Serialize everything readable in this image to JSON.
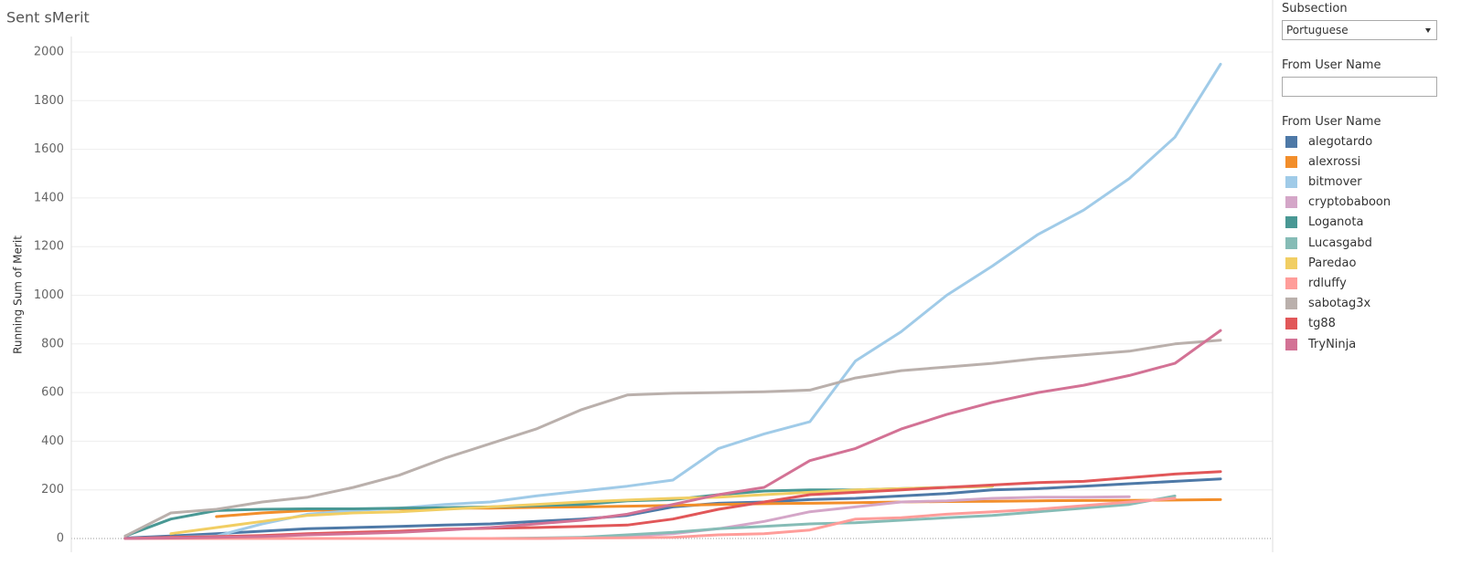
{
  "chart_data": {
    "type": "line",
    "title": "Sent sMerit",
    "y_label": "Running Sum of Merit",
    "categories": [
      null,
      null,
      null,
      null,
      null,
      null,
      null,
      null,
      null,
      null,
      null,
      null,
      null,
      null,
      null,
      null,
      null,
      null,
      null,
      null,
      null,
      null,
      null,
      null,
      null
    ],
    "ylim": [
      0,
      2000
    ],
    "yticks": [
      0,
      200,
      400,
      600,
      800,
      1000,
      1200,
      1400,
      1600,
      1800,
      2000
    ],
    "grid": true,
    "legend_title": "From User Name",
    "series": [
      {
        "name": "alegotardo",
        "color": "#4e79a7",
        "values": [
          2,
          10,
          20,
          30,
          40,
          45,
          50,
          55,
          60,
          70,
          80,
          95,
          130,
          145,
          150,
          160,
          165,
          175,
          185,
          200,
          205,
          215,
          225,
          235,
          245
        ]
      },
      {
        "name": "alexrossi",
        "color": "#f28e2b",
        "values": [
          null,
          null,
          90,
          105,
          115,
          120,
          122,
          125,
          125,
          128,
          130,
          133,
          136,
          140,
          143,
          145,
          147,
          150,
          152,
          153,
          155,
          156,
          157,
          158,
          160
        ]
      },
      {
        "name": "bitmover",
        "color": "#a0cbe8",
        "values": [
          0,
          5,
          10,
          60,
          100,
          115,
          125,
          140,
          150,
          175,
          195,
          215,
          240,
          370,
          430,
          480,
          730,
          850,
          1000,
          1120,
          1250,
          1350,
          1480,
          1650,
          1950
        ]
      },
      {
        "name": "cryptobaboon",
        "color": "#d4a6c8",
        "values": [
          0,
          0,
          0,
          0,
          0,
          0,
          0,
          0,
          0,
          0,
          2,
          10,
          20,
          40,
          70,
          110,
          130,
          150,
          155,
          165,
          170,
          170,
          172,
          null,
          null
        ]
      },
      {
        "name": "Loganota",
        "color": "#499894",
        "values": [
          10,
          80,
          115,
          120,
          122,
          122,
          125,
          127,
          130,
          135,
          140,
          155,
          160,
          180,
          195,
          200,
          200,
          205,
          210,
          215,
          null,
          null,
          null,
          null,
          null
        ]
      },
      {
        "name": "Lucasgabd",
        "color": "#86bcb6",
        "values": [
          0,
          0,
          0,
          0,
          0,
          0,
          0,
          0,
          0,
          2,
          5,
          15,
          25,
          40,
          50,
          60,
          65,
          75,
          85,
          95,
          110,
          125,
          140,
          175,
          null
        ]
      },
      {
        "name": "Paredao",
        "color": "#f1ce63",
        "values": [
          null,
          20,
          45,
          70,
          95,
          105,
          110,
          120,
          130,
          140,
          150,
          158,
          165,
          170,
          180,
          190,
          200,
          205,
          210,
          215,
          null,
          null,
          null,
          null,
          null
        ]
      },
      {
        "name": "rdluffy",
        "color": "#ff9d9a",
        "values": [
          0,
          0,
          0,
          0,
          0,
          0,
          0,
          0,
          0,
          0,
          2,
          3,
          5,
          15,
          20,
          35,
          80,
          85,
          100,
          110,
          120,
          135,
          150,
          165,
          null
        ]
      },
      {
        "name": "sabotag3x",
        "color": "#bab0ac",
        "values": [
          10,
          105,
          120,
          150,
          170,
          210,
          260,
          330,
          390,
          450,
          530,
          590,
          597,
          600,
          603,
          610,
          660,
          690,
          705,
          720,
          740,
          755,
          770,
          800,
          815
        ]
      },
      {
        "name": "tg88",
        "color": "#e15759",
        "values": [
          0,
          5,
          8,
          12,
          20,
          25,
          30,
          38,
          42,
          45,
          50,
          55,
          80,
          120,
          150,
          180,
          190,
          200,
          210,
          220,
          230,
          235,
          250,
          265,
          275
        ]
      },
      {
        "name": "TryNinja",
        "color": "#d37295",
        "values": [
          0,
          2,
          5,
          8,
          15,
          20,
          25,
          35,
          45,
          60,
          75,
          100,
          140,
          180,
          210,
          320,
          370,
          450,
          510,
          560,
          600,
          630,
          670,
          720,
          855
        ]
      }
    ]
  },
  "filters": {
    "subsection_label": "Subsection",
    "subsection_value": "Portuguese",
    "user_label": "From User Name"
  }
}
